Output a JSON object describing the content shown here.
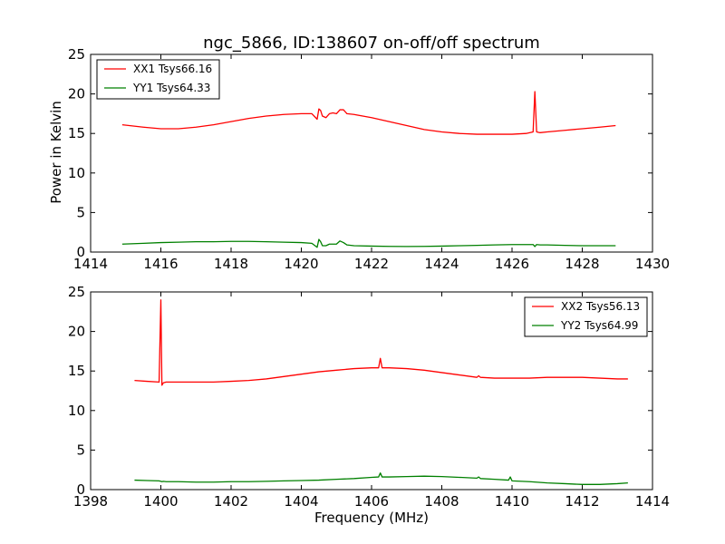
{
  "chart_data": {
    "title": "ngc_5866, ID:138607 on-off/off spectrum",
    "ylabel": "Power in Kelvin",
    "xlabel": "Frequency (MHz)",
    "panels": [
      {
        "type": "line",
        "xlim": [
          1414,
          1430
        ],
        "ylim": [
          0,
          25
        ],
        "xticks": [
          1414,
          1416,
          1418,
          1420,
          1422,
          1424,
          1426,
          1428,
          1430
        ],
        "yticks": [
          0,
          5,
          10,
          15,
          20,
          25
        ],
        "legend_position": "top-left",
        "series": [
          {
            "name": "XX1 Tsys66.16",
            "color": "#ff0000",
            "x": [
              1414.9,
              1415.5,
              1416.0,
              1416.5,
              1417.0,
              1417.5,
              1418.0,
              1418.5,
              1419.0,
              1419.5,
              1420.0,
              1420.3,
              1420.45,
              1420.5,
              1420.55,
              1420.6,
              1420.7,
              1420.8,
              1420.9,
              1421.0,
              1421.1,
              1421.2,
              1421.3,
              1421.5,
              1422.0,
              1422.5,
              1423.0,
              1423.5,
              1424.0,
              1424.5,
              1425.0,
              1425.5,
              1426.0,
              1426.4,
              1426.6,
              1426.65,
              1426.7,
              1426.8,
              1427.0,
              1427.5,
              1428.0,
              1428.5,
              1428.95
            ],
            "y": [
              16.1,
              15.8,
              15.6,
              15.6,
              15.8,
              16.1,
              16.5,
              16.9,
              17.2,
              17.4,
              17.5,
              17.5,
              16.8,
              18.1,
              17.9,
              17.2,
              17.0,
              17.5,
              17.6,
              17.5,
              18.0,
              18.0,
              17.5,
              17.4,
              17.0,
              16.5,
              16.0,
              15.5,
              15.2,
              15.0,
              14.9,
              14.9,
              14.9,
              15.0,
              15.2,
              20.3,
              15.2,
              15.1,
              15.2,
              15.4,
              15.6,
              15.8,
              16.0
            ]
          },
          {
            "name": "YY1 Tsys64.33",
            "color": "#008000",
            "x": [
              1414.9,
              1415.5,
              1416.0,
              1416.5,
              1417.0,
              1417.5,
              1418.0,
              1418.5,
              1419.0,
              1419.5,
              1420.0,
              1420.3,
              1420.45,
              1420.5,
              1420.55,
              1420.6,
              1420.7,
              1420.8,
              1420.9,
              1421.0,
              1421.1,
              1421.2,
              1421.3,
              1421.5,
              1422.0,
              1422.5,
              1423.0,
              1423.5,
              1424.0,
              1424.5,
              1425.0,
              1425.5,
              1426.0,
              1426.4,
              1426.6,
              1426.65,
              1426.7,
              1426.8,
              1427.0,
              1427.5,
              1428.0,
              1428.5,
              1428.95
            ],
            "y": [
              1.0,
              1.1,
              1.2,
              1.25,
              1.3,
              1.3,
              1.35,
              1.35,
              1.3,
              1.25,
              1.2,
              1.1,
              0.6,
              1.6,
              1.3,
              0.8,
              0.8,
              1.0,
              1.0,
              1.0,
              1.4,
              1.2,
              0.9,
              0.8,
              0.75,
              0.72,
              0.7,
              0.72,
              0.75,
              0.8,
              0.85,
              0.9,
              0.95,
              0.95,
              0.95,
              0.7,
              0.95,
              0.9,
              0.9,
              0.85,
              0.8,
              0.8,
              0.8
            ]
          }
        ]
      },
      {
        "type": "line",
        "xlim": [
          1398,
          1414
        ],
        "ylim": [
          0,
          25
        ],
        "xticks": [
          1398,
          1400,
          1402,
          1404,
          1406,
          1408,
          1410,
          1412,
          1414
        ],
        "yticks": [
          0,
          5,
          10,
          15,
          20,
          25
        ],
        "legend_position": "top-right",
        "series": [
          {
            "name": "XX2 Tsys56.13",
            "color": "#ff0000",
            "x": [
              1399.25,
              1399.6,
              1399.95,
              1400.0,
              1400.03,
              1400.07,
              1400.15,
              1400.5,
              1401.0,
              1401.5,
              1402.0,
              1402.5,
              1403.0,
              1403.5,
              1404.0,
              1404.5,
              1405.0,
              1405.5,
              1406.0,
              1406.2,
              1406.25,
              1406.3,
              1406.5,
              1407.0,
              1407.5,
              1408.0,
              1408.5,
              1409.0,
              1409.05,
              1409.1,
              1409.5,
              1410.0,
              1410.5,
              1411.0,
              1411.5,
              1412.0,
              1412.5,
              1413.0,
              1413.3
            ],
            "y": [
              13.8,
              13.7,
              13.6,
              24.0,
              13.2,
              13.5,
              13.6,
              13.6,
              13.6,
              13.6,
              13.7,
              13.8,
              14.0,
              14.3,
              14.6,
              14.9,
              15.1,
              15.3,
              15.4,
              15.4,
              16.6,
              15.4,
              15.4,
              15.3,
              15.1,
              14.8,
              14.5,
              14.2,
              14.4,
              14.2,
              14.1,
              14.1,
              14.1,
              14.2,
              14.2,
              14.2,
              14.1,
              14.0,
              14.0
            ]
          },
          {
            "name": "YY2 Tsys64.99",
            "color": "#008000",
            "x": [
              1399.25,
              1399.6,
              1399.95,
              1400.0,
              1400.03,
              1400.07,
              1400.15,
              1400.5,
              1401.0,
              1401.5,
              1402.0,
              1402.5,
              1403.0,
              1403.5,
              1404.0,
              1404.5,
              1405.0,
              1405.5,
              1406.0,
              1406.2,
              1406.25,
              1406.3,
              1406.5,
              1407.0,
              1407.5,
              1408.0,
              1408.5,
              1409.0,
              1409.05,
              1409.1,
              1409.5,
              1409.9,
              1409.95,
              1410.0,
              1410.5,
              1411.0,
              1411.5,
              1412.0,
              1412.5,
              1413.0,
              1413.3
            ],
            "y": [
              1.2,
              1.15,
              1.1,
              1.05,
              1.0,
              1.05,
              1.0,
              1.0,
              0.95,
              0.95,
              1.0,
              1.0,
              1.05,
              1.1,
              1.15,
              1.2,
              1.3,
              1.4,
              1.55,
              1.6,
              2.1,
              1.6,
              1.6,
              1.65,
              1.7,
              1.65,
              1.55,
              1.45,
              1.6,
              1.4,
              1.3,
              1.2,
              1.6,
              1.1,
              1.0,
              0.85,
              0.75,
              0.65,
              0.65,
              0.75,
              0.85
            ]
          }
        ]
      }
    ]
  }
}
